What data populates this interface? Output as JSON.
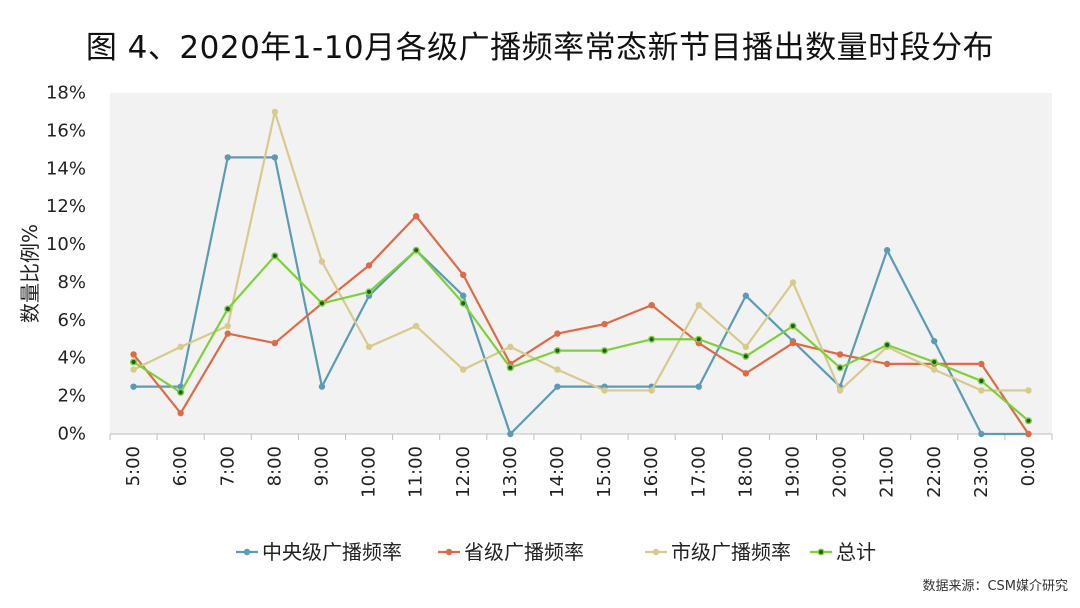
{
  "chart_data": {
    "type": "line",
    "title": "图 4、2020年1-10月各级广播频率常态新节目播出数量时段分布",
    "xlabel": "",
    "ylabel": "数量比例%",
    "ylim": [
      0,
      18
    ],
    "yticks": [
      "0%",
      "2%",
      "4%",
      "6%",
      "8%",
      "10%",
      "12%",
      "14%",
      "16%",
      "18%"
    ],
    "categories": [
      "5:00",
      "6:00",
      "7:00",
      "8:00",
      "9:00",
      "10:00",
      "11:00",
      "12:00",
      "13:00",
      "14:00",
      "15:00",
      "16:00",
      "17:00",
      "18:00",
      "19:00",
      "20:00",
      "21:00",
      "22:00",
      "23:00",
      "0:00"
    ],
    "series": [
      {
        "name": "中央级广播频率",
        "color": "#5b9bb4",
        "values": [
          2.5,
          2.5,
          14.6,
          14.6,
          2.5,
          7.3,
          9.7,
          7.3,
          0,
          2.5,
          2.5,
          2.5,
          2.5,
          7.3,
          4.9,
          2.5,
          9.7,
          4.9,
          0,
          0
        ]
      },
      {
        "name": "省级广播频率",
        "color": "#dd6b46",
        "values": [
          4.2,
          1.1,
          5.3,
          4.8,
          6.9,
          8.9,
          11.5,
          8.4,
          3.7,
          5.3,
          5.8,
          6.8,
          4.8,
          3.2,
          4.8,
          4.2,
          3.7,
          3.7,
          3.7,
          0
        ]
      },
      {
        "name": "市级广播频率",
        "color": "#d8c98d",
        "values": [
          3.4,
          4.6,
          5.7,
          17.0,
          9.1,
          4.6,
          5.7,
          3.4,
          4.6,
          3.4,
          2.3,
          2.3,
          6.8,
          4.6,
          8.0,
          2.3,
          4.6,
          3.4,
          2.3,
          2.3
        ]
      },
      {
        "name": "总计",
        "color": "#7ed03b",
        "values": [
          3.8,
          2.2,
          6.6,
          9.4,
          6.9,
          7.5,
          9.7,
          6.9,
          3.5,
          4.4,
          4.4,
          5.0,
          5.0,
          4.1,
          5.7,
          3.5,
          4.7,
          3.8,
          2.8,
          0.7
        ]
      }
    ],
    "grid": false,
    "legend": "bottom"
  },
  "source": "数据来源：CSM媒介研究"
}
